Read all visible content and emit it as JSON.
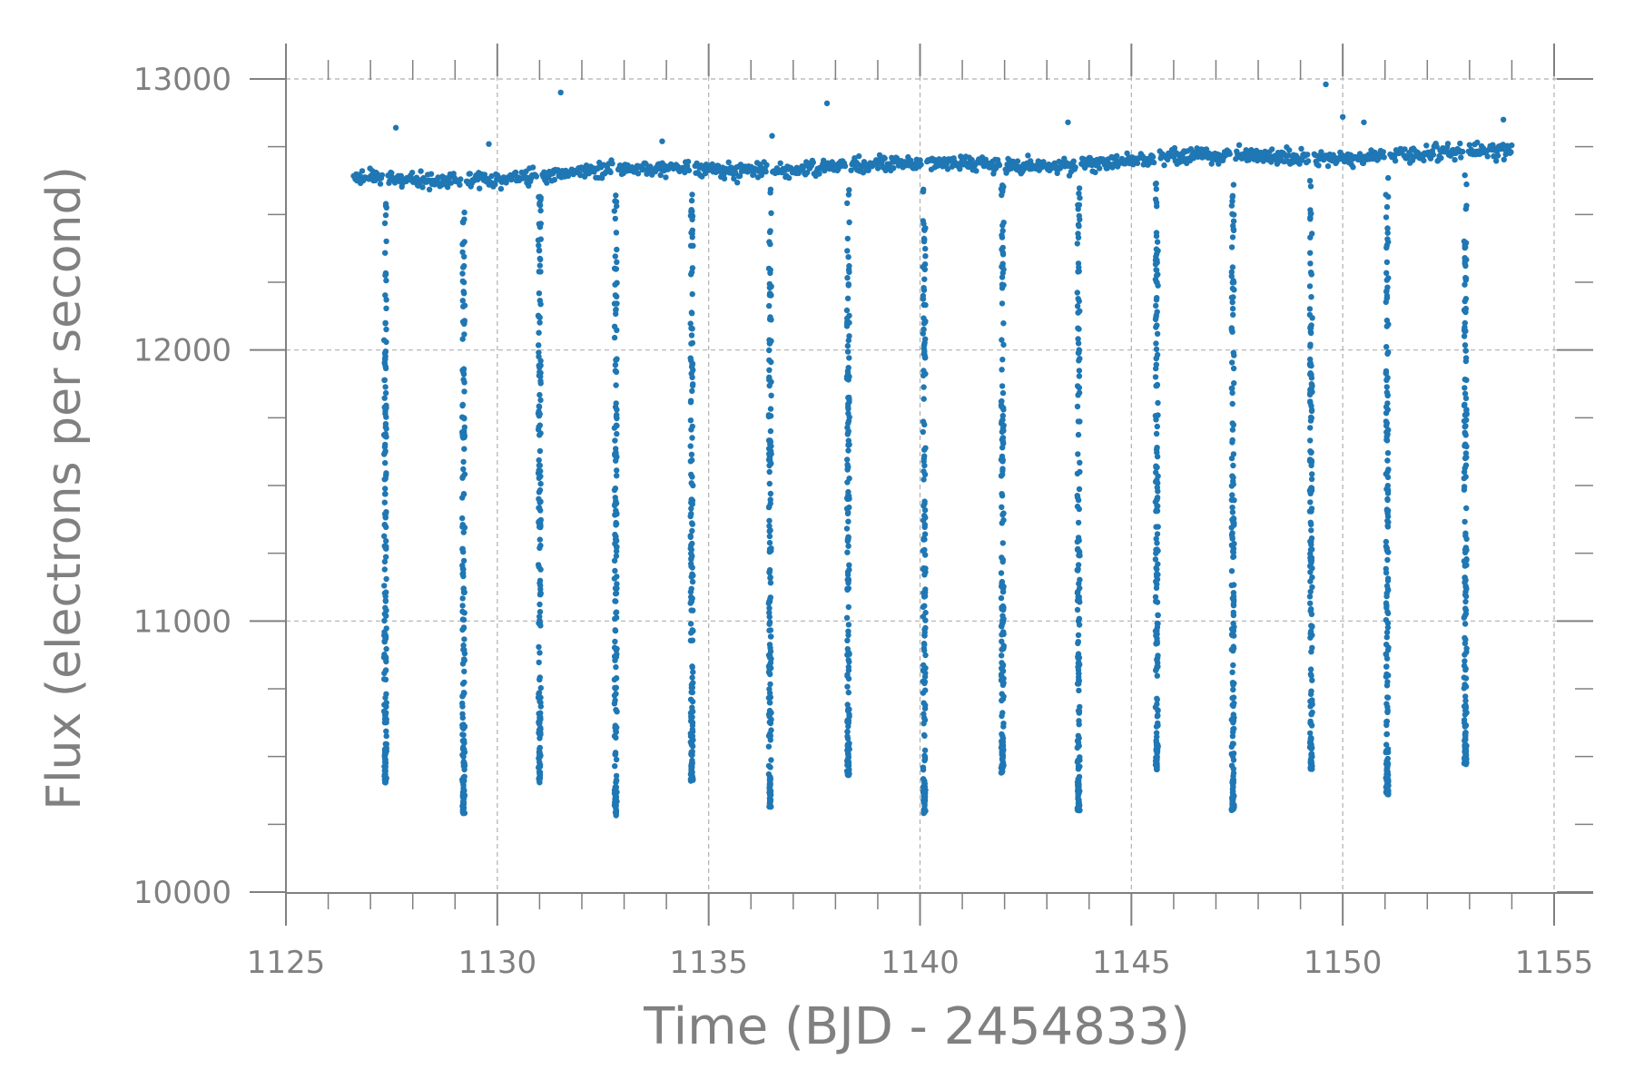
{
  "chart_data": {
    "type": "scatter",
    "title": "",
    "xlabel": "Time (BJD - 2454833)",
    "ylabel": "Flux (electrons per second)",
    "xlim": [
      1125,
      1156
    ],
    "ylim": [
      9950,
      13150
    ],
    "xticks": [
      1125,
      1130,
      1135,
      1140,
      1145,
      1150,
      1155
    ],
    "xtick_labels": [
      "1125",
      "1130",
      "1135",
      "1140",
      "1145",
      "1150",
      "1155"
    ],
    "yticks": [
      10000,
      11000,
      12000,
      13000
    ],
    "ytick_labels": [
      "10000",
      "11000",
      "12000",
      "13000"
    ],
    "grid": true,
    "legend": "none",
    "series": [
      {
        "color": "#1f77b4",
        "baseline": {
          "x": [
            1126.6,
            1130,
            1135,
            1140,
            1145,
            1150,
            1154
          ],
          "flux": [
            12630,
            12640,
            12670,
            12680,
            12700,
            12720,
            12730
          ]
        },
        "transits": {
          "time": [
            1127.35,
            1129.2,
            1131.0,
            1132.8,
            1134.6,
            1136.45,
            1138.3,
            1140.1,
            1141.95,
            1143.75,
            1145.6,
            1147.4,
            1149.25,
            1151.05,
            1152.9
          ],
          "min_flux": [
            10400,
            10290,
            10400,
            10280,
            10410,
            10310,
            10430,
            10290,
            10440,
            10300,
            10450,
            10300,
            10450,
            10360,
            10470
          ]
        },
        "outliers": {
          "x": [
            1127.6,
            1131.5,
            1137.8,
            1149.6,
            1150.0,
            1150.5,
            1153.8,
            1129.8,
            1133.9,
            1136.5,
            1143.5
          ],
          "y": [
            12820,
            12950,
            12910,
            12980,
            12860,
            12840,
            12850,
            12760,
            12770,
            12790,
            12840
          ]
        }
      }
    ]
  }
}
